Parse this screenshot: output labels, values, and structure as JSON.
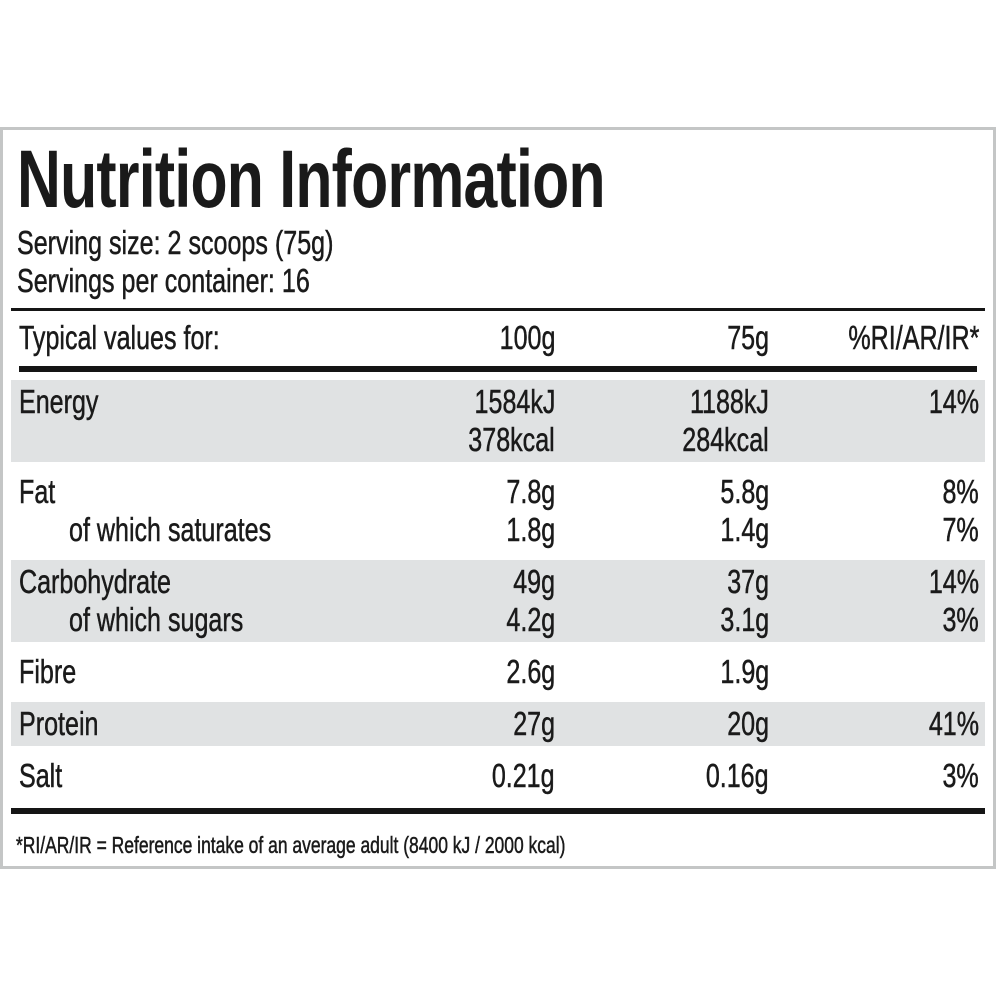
{
  "label": {
    "title": "Nutrition Information",
    "serving_size": "Serving size: 2 scoops (75g)",
    "servings_per_container": "Servings per container: 16",
    "footnote": "*RI/AR/IR = Reference intake of an average adult (8400 kJ / 2000 kcal)"
  },
  "table": {
    "header": {
      "label": "Typical values for:",
      "col_100g": "100g",
      "col_75g": "75g",
      "col_ri": "%RI/AR/IR*"
    },
    "groups": [
      {
        "shaded": true,
        "rows": [
          {
            "label": "Energy",
            "indent": false,
            "per_100g": [
              "1584kJ",
              "378kcal"
            ],
            "per_75g": [
              "1188kJ",
              "284kcal"
            ],
            "ri": "14%"
          }
        ]
      },
      {
        "shaded": false,
        "rows": [
          {
            "label": "Fat",
            "indent": false,
            "per_100g": [
              "7.8g"
            ],
            "per_75g": [
              "5.8g"
            ],
            "ri": "8%"
          },
          {
            "label": "of which saturates",
            "indent": true,
            "per_100g": [
              "1.8g"
            ],
            "per_75g": [
              "1.4g"
            ],
            "ri": "7%"
          }
        ]
      },
      {
        "shaded": true,
        "rows": [
          {
            "label": "Carbohydrate",
            "indent": false,
            "per_100g": [
              "49g"
            ],
            "per_75g": [
              "37g"
            ],
            "ri": "14%"
          },
          {
            "label": "of which sugars",
            "indent": true,
            "per_100g": [
              "4.2g"
            ],
            "per_75g": [
              "3.1g"
            ],
            "ri": "3%"
          }
        ]
      },
      {
        "shaded": false,
        "rows": [
          {
            "label": "Fibre",
            "indent": false,
            "per_100g": [
              "2.6g"
            ],
            "per_75g": [
              "1.9g"
            ],
            "ri": ""
          }
        ]
      },
      {
        "shaded": true,
        "rows": [
          {
            "label": "Protein",
            "indent": false,
            "per_100g": [
              "27g"
            ],
            "per_75g": [
              "20g"
            ],
            "ri": "41%"
          }
        ]
      },
      {
        "shaded": false,
        "rows": [
          {
            "label": "Salt",
            "indent": false,
            "per_100g": [
              "0.21g"
            ],
            "per_75g": [
              "0.16g"
            ],
            "ri": "3%"
          }
        ]
      }
    ]
  },
  "colors": {
    "text": "#1a1a1a",
    "row_shade": "#e0e2e3",
    "rule": "#151515",
    "card_border": "#c4c6c6",
    "background": "#ffffff"
  }
}
